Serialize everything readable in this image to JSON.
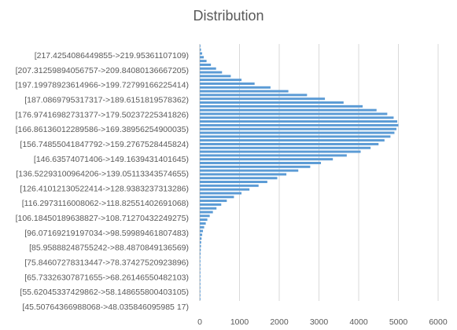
{
  "chart_data": {
    "type": "bar",
    "orientation": "horizontal",
    "title": "Distribution",
    "xlabel": "",
    "ylabel": "",
    "xlim": [
      0,
      6000
    ],
    "xticks": [
      0,
      1000,
      2000,
      3000,
      4000,
      5000,
      6000
    ],
    "grid": true,
    "legend": "none",
    "bar_color": "#5b9bd5",
    "grid_color": "#d9d9d9",
    "category_labels": [
      "[217.4254086449855->219.95361107109)",
      "[207.31259894056757->209.84080136667205)",
      "[197.19978923614966->199.72799166225414)",
      "[187.0869795317317->189.6151819578362)",
      "[176.97416982731377->179.50237225341826)",
      "[166.86136012289586->169.38956254900035)",
      "[156.74855041847792->159.2767528445824)",
      "[146.63574071406->149.1639431401645)",
      "[136.52293100964206->139.05113343574655)",
      "[126.41012130522414->128.9383237313286)",
      "[116.2973116008062->118.82551402691068)",
      "[106.18450189638827->108.71270432249275)",
      "[96.07169219197034->98.59989461807483)",
      "[85.95888248755242->88.4870849136569)",
      "[75.84607278313447->78.37427520923896)",
      "[65.73326307871655->68.26146550482103)",
      "[55.62045337429862->58.148655800403105)",
      "[45.50764366988068->48.035846095985 17)"
    ],
    "values": [
      5,
      5,
      5,
      5,
      5,
      5,
      5,
      10,
      10,
      10,
      15,
      15,
      20,
      25,
      30,
      35,
      45,
      60,
      80,
      110,
      150,
      190,
      250,
      330,
      420,
      540,
      680,
      860,
      1050,
      1250,
      1480,
      1700,
      1950,
      2180,
      2480,
      2780,
      3050,
      3350,
      3700,
      4050,
      4300,
      4500,
      4650,
      4800,
      4900,
      4950,
      5000,
      4970,
      4880,
      4720,
      4450,
      4100,
      3620,
      3150,
      2700,
      2230,
      1780,
      1380,
      1050,
      780,
      560,
      410,
      280,
      170,
      100,
      60,
      30,
      10
    ]
  }
}
